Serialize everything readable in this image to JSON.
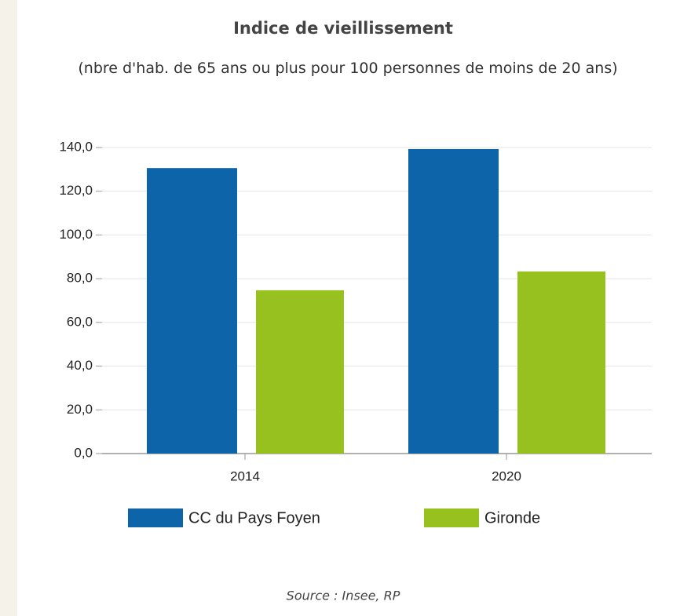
{
  "chart_data": {
    "type": "bar",
    "title": "Indice de vieillissement",
    "subtitle": "(nbre d'hab. de 65 ans ou plus pour 100 personnes de moins de 20 ans)",
    "categories": [
      "2014",
      "2020"
    ],
    "series": [
      {
        "name": "CC du Pays Foyen",
        "color": "#0e64a8",
        "values": [
          130.6,
          139.3
        ]
      },
      {
        "name": "Gironde",
        "color": "#97c11f",
        "values": [
          74.7,
          83.3
        ]
      }
    ],
    "ylim": [
      0,
      140
    ],
    "yticks": [
      {
        "value": 0,
        "label": "0,0"
      },
      {
        "value": 20,
        "label": "20,0"
      },
      {
        "value": 40,
        "label": "40,0"
      },
      {
        "value": 60,
        "label": "60,0"
      },
      {
        "value": 80,
        "label": "80,0"
      },
      {
        "value": 100,
        "label": "100,0"
      },
      {
        "value": 120,
        "label": "120,0"
      },
      {
        "value": 140,
        "label": "140,0"
      }
    ],
    "grid": true,
    "source": "Source : Insee, RP"
  }
}
